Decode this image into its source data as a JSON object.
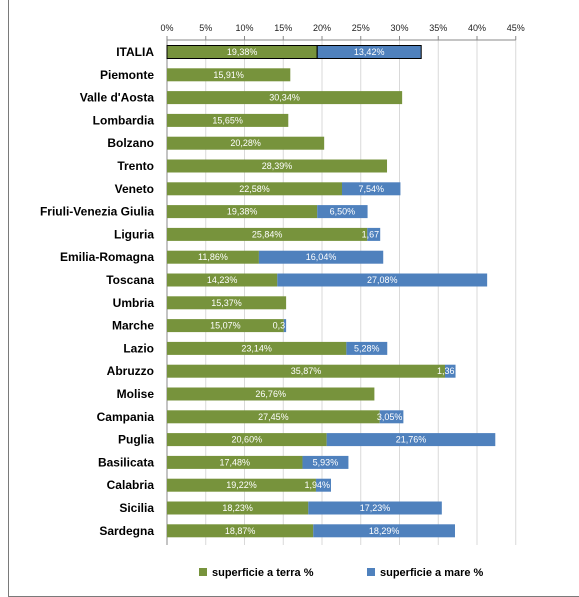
{
  "chart_data": {
    "type": "bar",
    "orientation": "horizontal",
    "stacked": true,
    "xlim": [
      0,
      45
    ],
    "x_ticks": [
      "0%",
      "5%",
      "10%",
      "15%",
      "20%",
      "25%",
      "30%",
      "35%",
      "40%",
      "45%"
    ],
    "x_tick_values": [
      0,
      5,
      10,
      15,
      20,
      25,
      30,
      35,
      40,
      45
    ],
    "categories": [
      "ITALIA",
      "Piemonte",
      "Valle d'Aosta",
      "Lombardia",
      "Bolzano",
      "Trento",
      "Veneto",
      "Friuli-Venezia Giulia",
      "Liguria",
      "Emilia-Romagna",
      "Toscana",
      "Umbria",
      "Marche",
      "Lazio",
      "Abruzzo",
      "Molise",
      "Campania",
      "Puglia",
      "Basilicata",
      "Calabria",
      "Sicilia",
      "Sardegna"
    ],
    "series": [
      {
        "name": "superficie a terra %",
        "color": "#77933c",
        "values": [
          19.38,
          15.91,
          30.34,
          15.65,
          20.28,
          28.39,
          22.58,
          19.38,
          25.84,
          11.86,
          14.23,
          15.37,
          15.07,
          23.14,
          35.87,
          26.76,
          27.45,
          20.6,
          17.48,
          19.22,
          18.23,
          18.87
        ],
        "labels": [
          "19,38%",
          "15,91%",
          "30,34%",
          "15,65%",
          "20,28%",
          "28,39%",
          "22,58%",
          "19,38%",
          "25,84%",
          "11,86%",
          "14,23%",
          "15,37%",
          "15,07%",
          "23,14%",
          "35,87%",
          "26,76%",
          "27,45%",
          "20,60%",
          "17,48%",
          "19,22%",
          "18,23%",
          "18,87%"
        ]
      },
      {
        "name": "superficie a mare %",
        "color": "#4f81bd",
        "values": [
          13.42,
          0,
          0,
          0,
          0,
          0,
          7.54,
          6.5,
          1.67,
          16.04,
          27.08,
          0,
          0.3,
          5.28,
          1.36,
          0,
          3.05,
          21.76,
          5.93,
          1.94,
          17.23,
          18.29
        ],
        "labels": [
          "13,42%",
          "",
          "",
          "",
          "",
          "",
          "7,54%",
          "6,50%",
          "1,67",
          "16,04%",
          "27,08%",
          "",
          "0,3",
          "5,28%",
          "1,36",
          "",
          "3,05%",
          "21,76%",
          "5,93%",
          "1,94%",
          "17,23%",
          "18,29%"
        ]
      }
    ],
    "legend": "bottom",
    "grid": true,
    "highlighted_category": "ITALIA"
  }
}
